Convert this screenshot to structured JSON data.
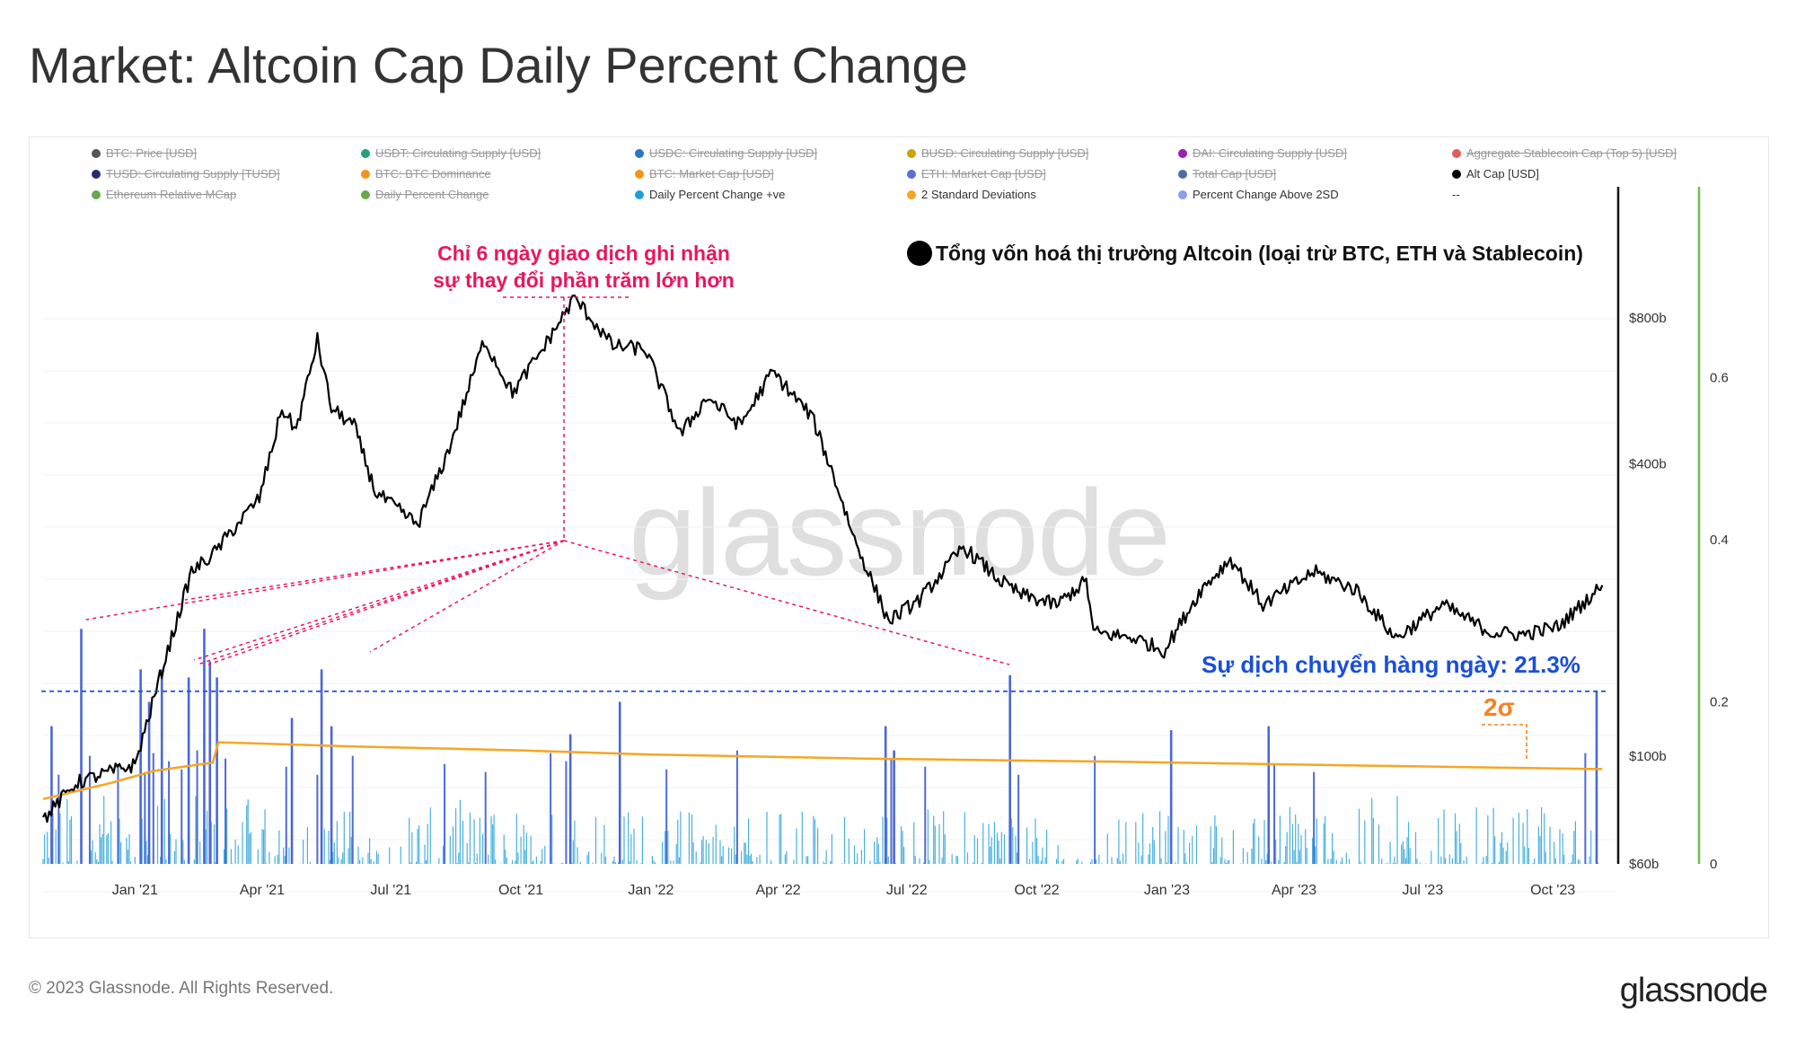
{
  "title": "Market: Altcoin Cap Daily Percent Change",
  "legend": [
    {
      "label": "BTC: Price [USD]",
      "color": "#555555",
      "active": false
    },
    {
      "label": "USDT: Circulating Supply [USD]",
      "color": "#26a17b",
      "active": false
    },
    {
      "label": "USDC: Circulating Supply [USD]",
      "color": "#2775ca",
      "active": false
    },
    {
      "label": "BUSD: Circulating Supply [USD]",
      "color": "#c8a400",
      "active": false
    },
    {
      "label": "DAI: Circulating Supply [USD]",
      "color": "#9b1fb5",
      "active": false
    },
    {
      "label": "Aggregate Stablecoin Cap (Top 5) [USD]",
      "color": "#e35c5c",
      "active": false
    },
    {
      "label": "TUSD: Circulating Supply [TUSD]",
      "color": "#2a2a6e",
      "active": false
    },
    {
      "label": "BTC: BTC Dominance",
      "color": "#f7931a",
      "active": false
    },
    {
      "label": "BTC: Market Cap [USD]",
      "color": "#f7931a",
      "active": false
    },
    {
      "label": "ETH: Market Cap [USD]",
      "color": "#5b6fd6",
      "active": false
    },
    {
      "label": "Total Cap [USD]",
      "color": "#4a6fa5",
      "active": false
    },
    {
      "label": "Alt Cap [USD]",
      "color": "#000000",
      "active": true
    },
    {
      "label": "Ethereum Relative MCap",
      "color": "#6aa84f",
      "active": false
    },
    {
      "label": "Daily Percent Change",
      "color": "#6aa84f",
      "active": false
    },
    {
      "label": "Daily Percent Change +ve",
      "color": "#1f9fd6",
      "active": true
    },
    {
      "label": "2 Standard Deviations",
      "color": "#f5a623",
      "active": true
    },
    {
      "label": "Percent Change Above 2SD",
      "color": "#8c9ee8",
      "active": true
    },
    {
      "label": "--",
      "color": "",
      "active": true
    }
  ],
  "annotations": {
    "six_days": [
      "Chỉ 6 ngày giao dịch ghi nhận",
      "sự thay đổi phần trăm lớn hơn"
    ],
    "altcap_note": "Tổng vốn hoá thị trường Altcoin (loại trừ BTC, ETH và Stablecoin)",
    "daily_move": "Sự dịch chuyển hàng ngày: 21.3%",
    "two_sigma": "2σ",
    "colors": {
      "pink": "#e8175d",
      "blue": "#1a4fd8",
      "orange": "#f58220"
    }
  },
  "watermark": "glassnode",
  "footer": {
    "copyright": "© 2023 Glassnode. All Rights Reserved.",
    "logo": "glassnode"
  },
  "chart_data": {
    "type": "line",
    "x_ticks": [
      "Jan '21",
      "Apr '21",
      "Jul '21",
      "Oct '21",
      "Jan '22",
      "Apr '22",
      "Jul '22",
      "Oct '22",
      "Jan '23",
      "Apr '23",
      "Jul '23",
      "Oct '23"
    ],
    "x_range": [
      "2020-10-28",
      "2023-11-15"
    ],
    "left_axis": {
      "label": "",
      "scale": "log",
      "ticks": [
        "$60b",
        "$100b",
        "$400b",
        "$800b"
      ],
      "tick_values": [
        60,
        100,
        400,
        800
      ],
      "range": [
        60,
        1300
      ]
    },
    "right_axis": {
      "label": "",
      "ticks": [
        "0",
        "0.2",
        "0.4",
        "0.6"
      ],
      "tick_values": [
        0,
        0.2,
        0.4,
        0.6
      ],
      "range": [
        0,
        0.8
      ]
    },
    "series": [
      {
        "name": "Alt Cap [USD]",
        "axis": "left",
        "unit": "billion USD",
        "points": [
          [
            "2020-10-28",
            74
          ],
          [
            "2020-11-20",
            88
          ],
          [
            "2020-12-10",
            92
          ],
          [
            "2021-01-01",
            96
          ],
          [
            "2021-01-20",
            150
          ],
          [
            "2021-02-10",
            240
          ],
          [
            "2021-02-25",
            260
          ],
          [
            "2021-03-10",
            290
          ],
          [
            "2021-03-30",
            340
          ],
          [
            "2021-04-15",
            520
          ],
          [
            "2021-04-25",
            470
          ],
          [
            "2021-05-10",
            720
          ],
          [
            "2021-05-20",
            520
          ],
          [
            "2021-06-05",
            480
          ],
          [
            "2021-06-20",
            350
          ],
          [
            "2021-07-20",
            300
          ],
          [
            "2021-08-10",
            420
          ],
          [
            "2021-09-05",
            720
          ],
          [
            "2021-09-25",
            560
          ],
          [
            "2021-10-15",
            680
          ],
          [
            "2021-11-08",
            880
          ],
          [
            "2021-12-05",
            700
          ],
          [
            "2021-12-28",
            690
          ],
          [
            "2022-01-22",
            460
          ],
          [
            "2022-02-10",
            550
          ],
          [
            "2022-03-05",
            480
          ],
          [
            "2022-03-28",
            620
          ],
          [
            "2022-04-25",
            500
          ],
          [
            "2022-05-10",
            380
          ],
          [
            "2022-05-25",
            280
          ],
          [
            "2022-06-18",
            190
          ],
          [
            "2022-07-10",
            210
          ],
          [
            "2022-08-10",
            270
          ],
          [
            "2022-09-05",
            230
          ],
          [
            "2022-09-20",
            215
          ],
          [
            "2022-10-15",
            205
          ],
          [
            "2022-11-05",
            230
          ],
          [
            "2022-11-10",
            180
          ],
          [
            "2022-12-10",
            175
          ],
          [
            "2022-12-30",
            165
          ],
          [
            "2023-01-25",
            220
          ],
          [
            "2023-02-15",
            255
          ],
          [
            "2023-03-10",
            205
          ],
          [
            "2023-04-15",
            240
          ],
          [
            "2023-05-15",
            220
          ],
          [
            "2023-06-12",
            175
          ],
          [
            "2023-07-15",
            205
          ],
          [
            "2023-08-18",
            180
          ],
          [
            "2023-09-10",
            178
          ],
          [
            "2023-10-05",
            185
          ],
          [
            "2023-10-25",
            210
          ],
          [
            "2023-11-05",
            225
          ]
        ]
      },
      {
        "name": "2 Standard Deviations",
        "axis": "right",
        "points": [
          [
            "2020-10-28",
            0.08
          ],
          [
            "2020-12-15",
            0.1
          ],
          [
            "2021-01-15",
            0.115
          ],
          [
            "2021-02-25",
            0.125
          ],
          [
            "2021-03-01",
            0.15
          ],
          [
            "2021-06-01",
            0.145
          ],
          [
            "2021-10-01",
            0.14
          ],
          [
            "2022-01-01",
            0.135
          ],
          [
            "2022-06-01",
            0.13
          ],
          [
            "2022-12-01",
            0.126
          ],
          [
            "2023-06-01",
            0.121
          ],
          [
            "2023-11-05",
            0.117
          ]
        ]
      },
      {
        "name": "Percent Change Above 2SD",
        "axis": "right",
        "render": "spikes",
        "points": [
          [
            "2020-11-03",
            0.17
          ],
          [
            "2020-11-24",
            0.29
          ],
          [
            "2021-01-05",
            0.24
          ],
          [
            "2021-01-11",
            0.2
          ],
          [
            "2021-01-20",
            0.24
          ],
          [
            "2021-02-08",
            0.23
          ],
          [
            "2021-02-19",
            0.29
          ],
          [
            "2021-02-23",
            0.25
          ],
          [
            "2021-02-28",
            0.23
          ],
          [
            "2021-04-22",
            0.18
          ],
          [
            "2021-05-13",
            0.24
          ],
          [
            "2021-05-20",
            0.17
          ],
          [
            "2021-11-05",
            0.16
          ],
          [
            "2021-12-10",
            0.2
          ],
          [
            "2022-06-16",
            0.17
          ],
          [
            "2022-06-22",
            0.14
          ],
          [
            "2022-09-12",
            0.233
          ],
          [
            "2023-01-04",
            0.165
          ],
          [
            "2023-03-14",
            0.17
          ],
          [
            "2023-11-01",
            0.213
          ]
        ]
      }
    ],
    "reference_line": {
      "label": "Sự dịch chuyển hàng ngày: 21.3%",
      "value": 0.213,
      "axis": "right"
    }
  }
}
